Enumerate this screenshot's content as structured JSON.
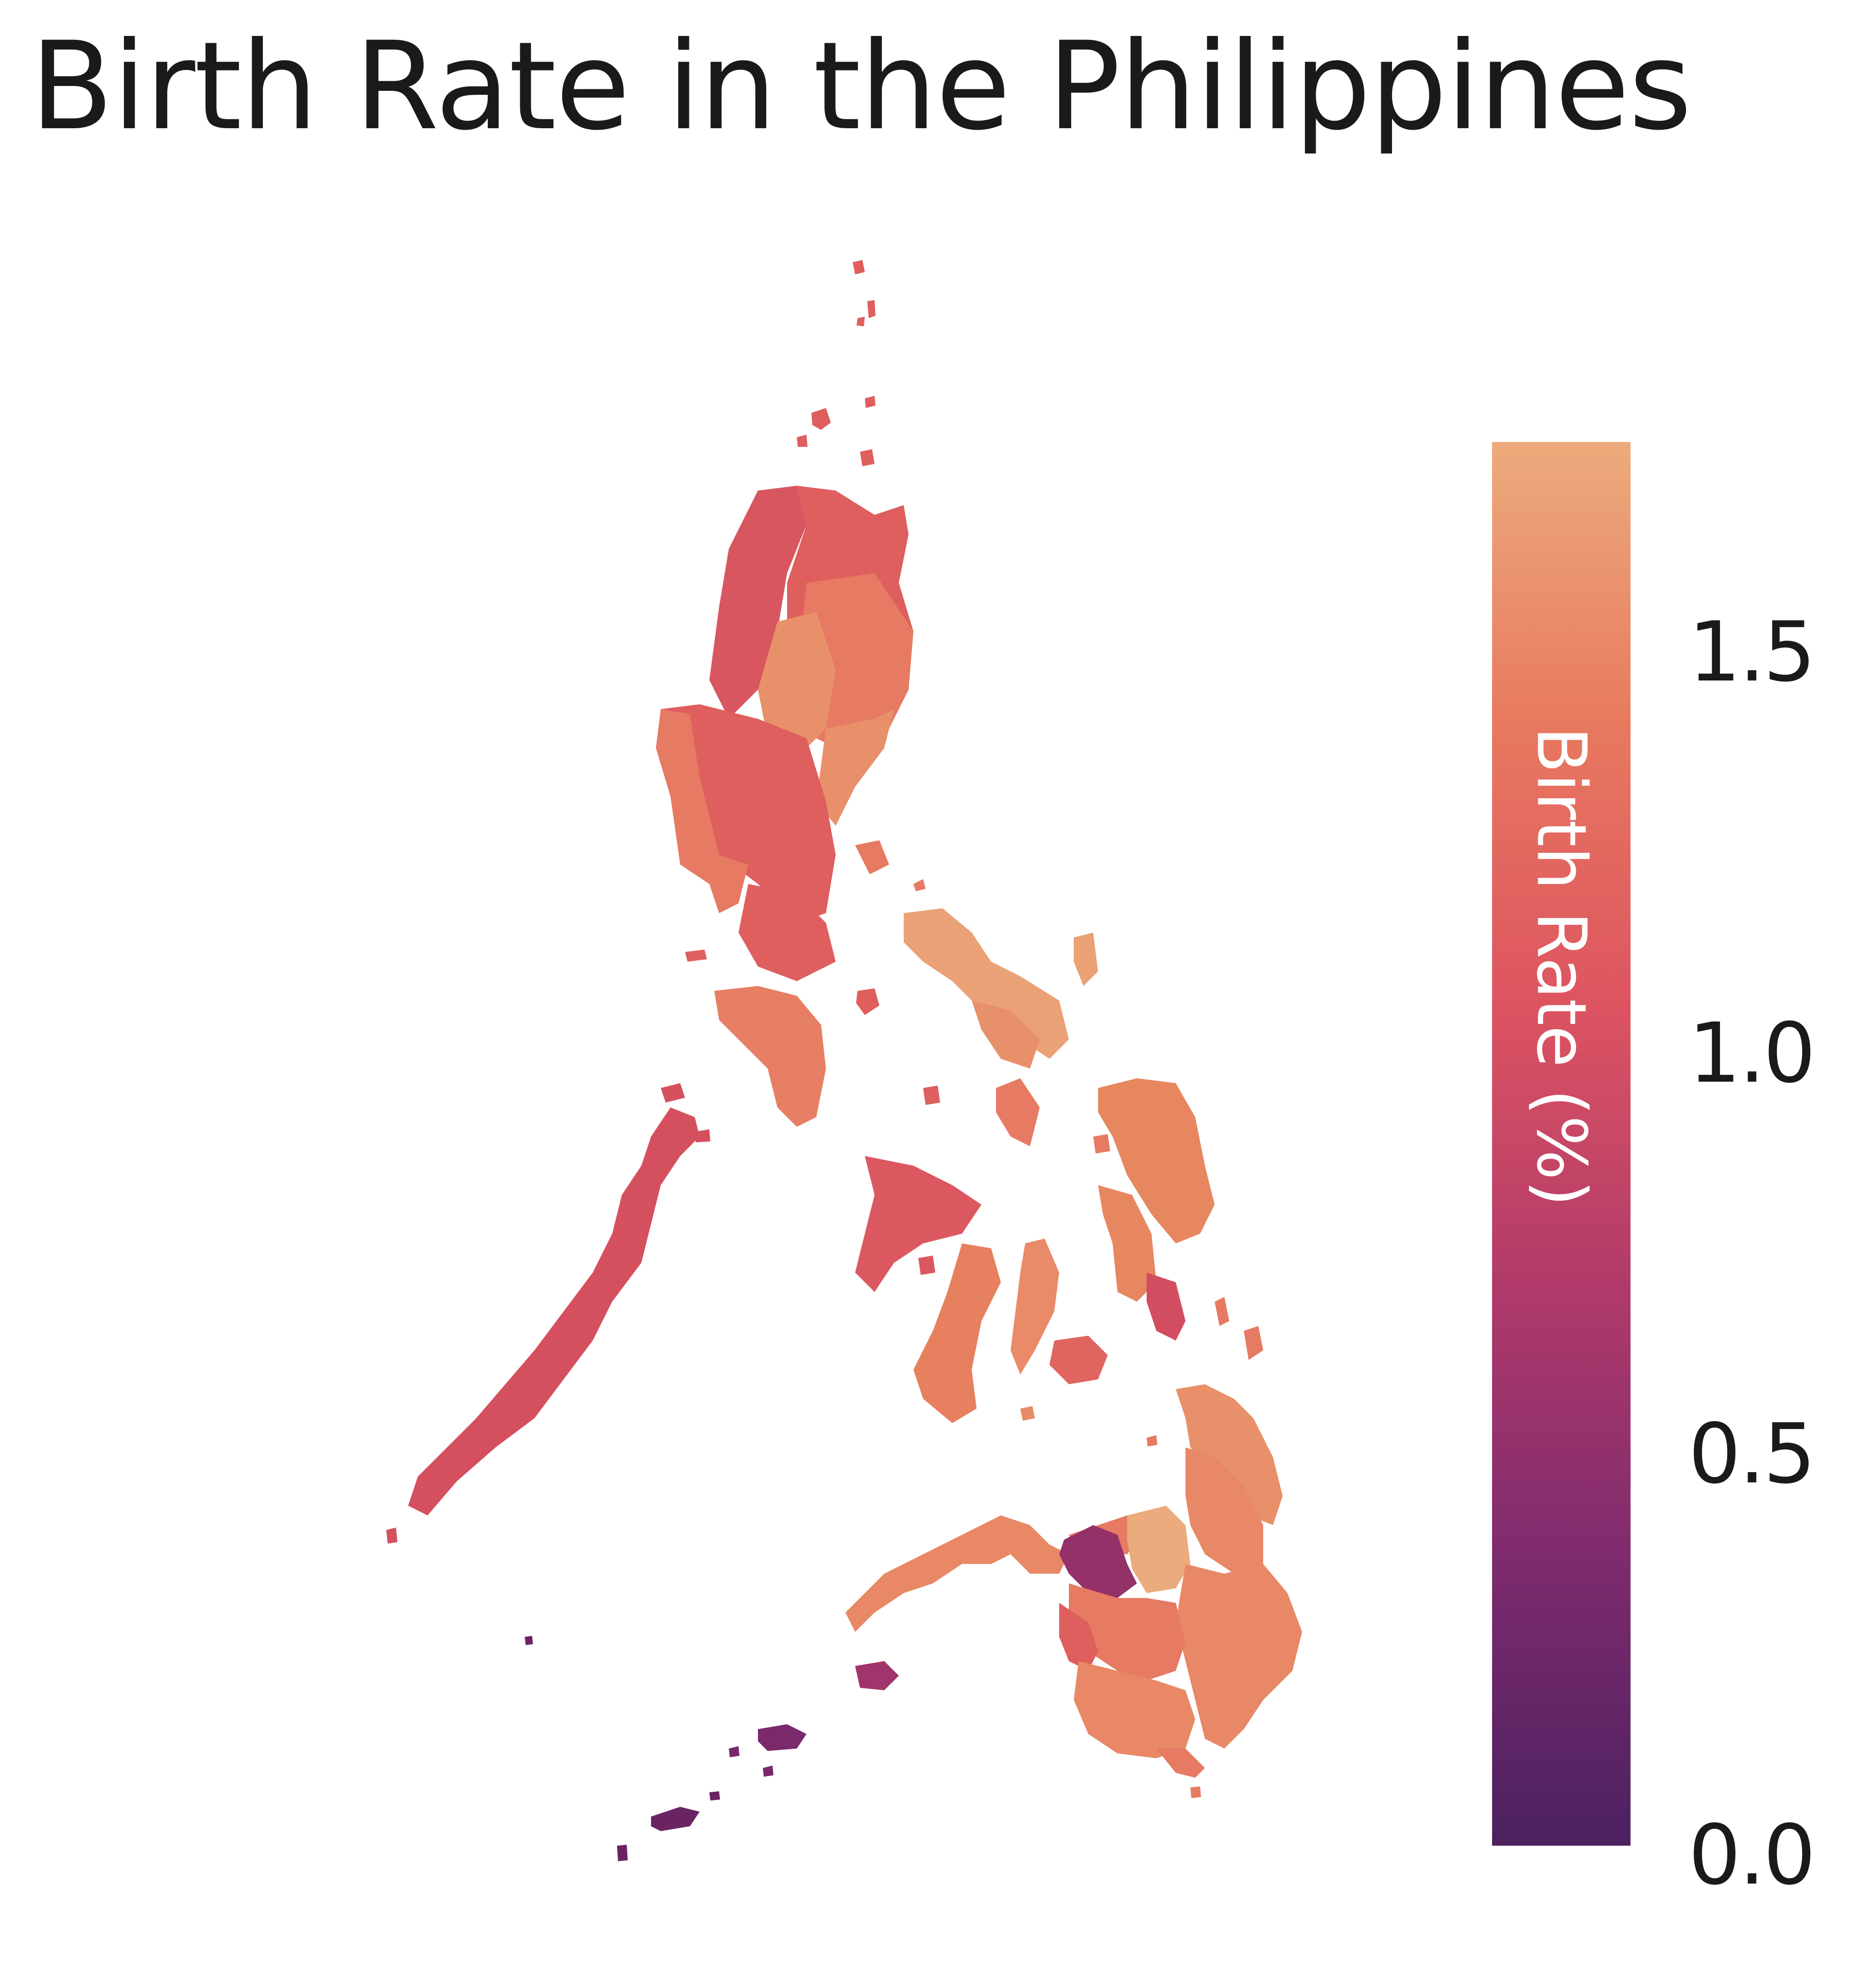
{
  "title": "Birth Rate in the Philippines",
  "legend": {
    "title": "Birth Rate (%)",
    "min": 0.0,
    "max": 1.75,
    "ticks": [
      {
        "value": 0.0,
        "label": "0.0"
      },
      {
        "value": 0.5,
        "label": "0.5"
      },
      {
        "value": 1.0,
        "label": "1.0"
      },
      {
        "value": 1.5,
        "label": "1.5"
      }
    ],
    "colors": [
      "#4b2160",
      "#7d2a6e",
      "#b13a6a",
      "#dd5461",
      "#e8795f",
      "#ecab7c"
    ]
  },
  "colors": {
    "north_luzon": "#df5e5e",
    "luzon_west": "#d85660",
    "luzon_mid": "#e67a62",
    "luzon_light": "#e8906a",
    "bicol": "#eaa176",
    "mindoro": "#e67f63",
    "palawan": "#d5505f",
    "panay": "#db5861",
    "negros": "#e6805f",
    "cebu": "#e98a68",
    "bohol": "#e06560",
    "samar": "#e7875f",
    "leyte": "#d24d60",
    "mindanao": "#e88866",
    "mindanao_center": "#ecab7c",
    "lanao": "#943168",
    "basilan": "#a0356b",
    "sulu": "#7a2a6b",
    "tawi": "#6a2464"
  }
}
